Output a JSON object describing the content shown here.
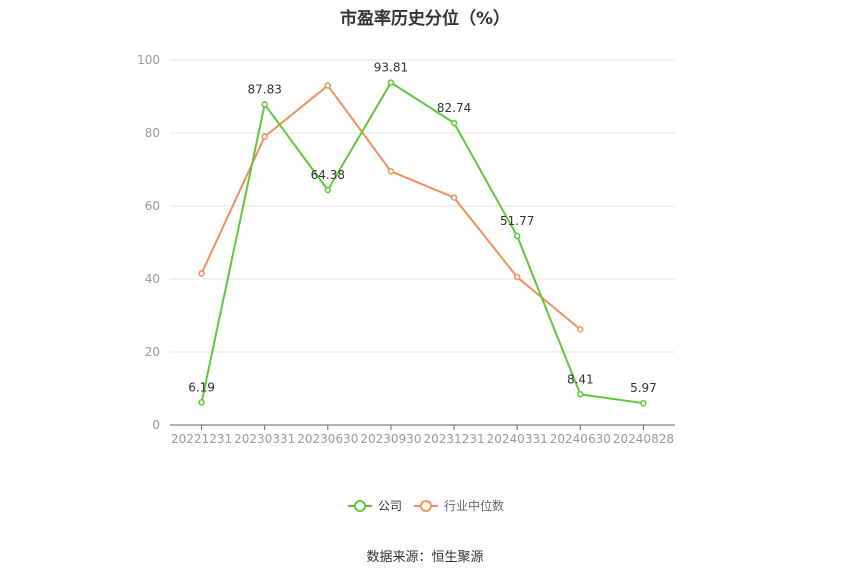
{
  "chart_data": {
    "type": "line",
    "title": "市盈率历史分位（%）",
    "xlabel": "",
    "ylabel": "",
    "categories": [
      "20221231",
      "20230331",
      "20230630",
      "20230930",
      "20231231",
      "20240331",
      "20240630",
      "20240828"
    ],
    "ylim": [
      0,
      100
    ],
    "yticks": [
      0,
      20,
      40,
      60,
      80,
      100
    ],
    "grid": true,
    "legend_position": "bottom-center",
    "series": [
      {
        "name": "公司",
        "color": "#5cc93c",
        "values": [
          6.19,
          87.83,
          64.38,
          93.81,
          82.74,
          51.77,
          8.41,
          5.97
        ],
        "labels": [
          "6.19",
          "87.83",
          "64.38",
          "93.81",
          "82.74",
          "51.77",
          "8.41",
          "5.97"
        ]
      },
      {
        "name": "行业中位数",
        "color": "#f0905e",
        "values": [
          41.5,
          79,
          93,
          69.5,
          62.3,
          40.5,
          26.2,
          null
        ]
      }
    ]
  },
  "source": "数据来源：恒生聚源"
}
